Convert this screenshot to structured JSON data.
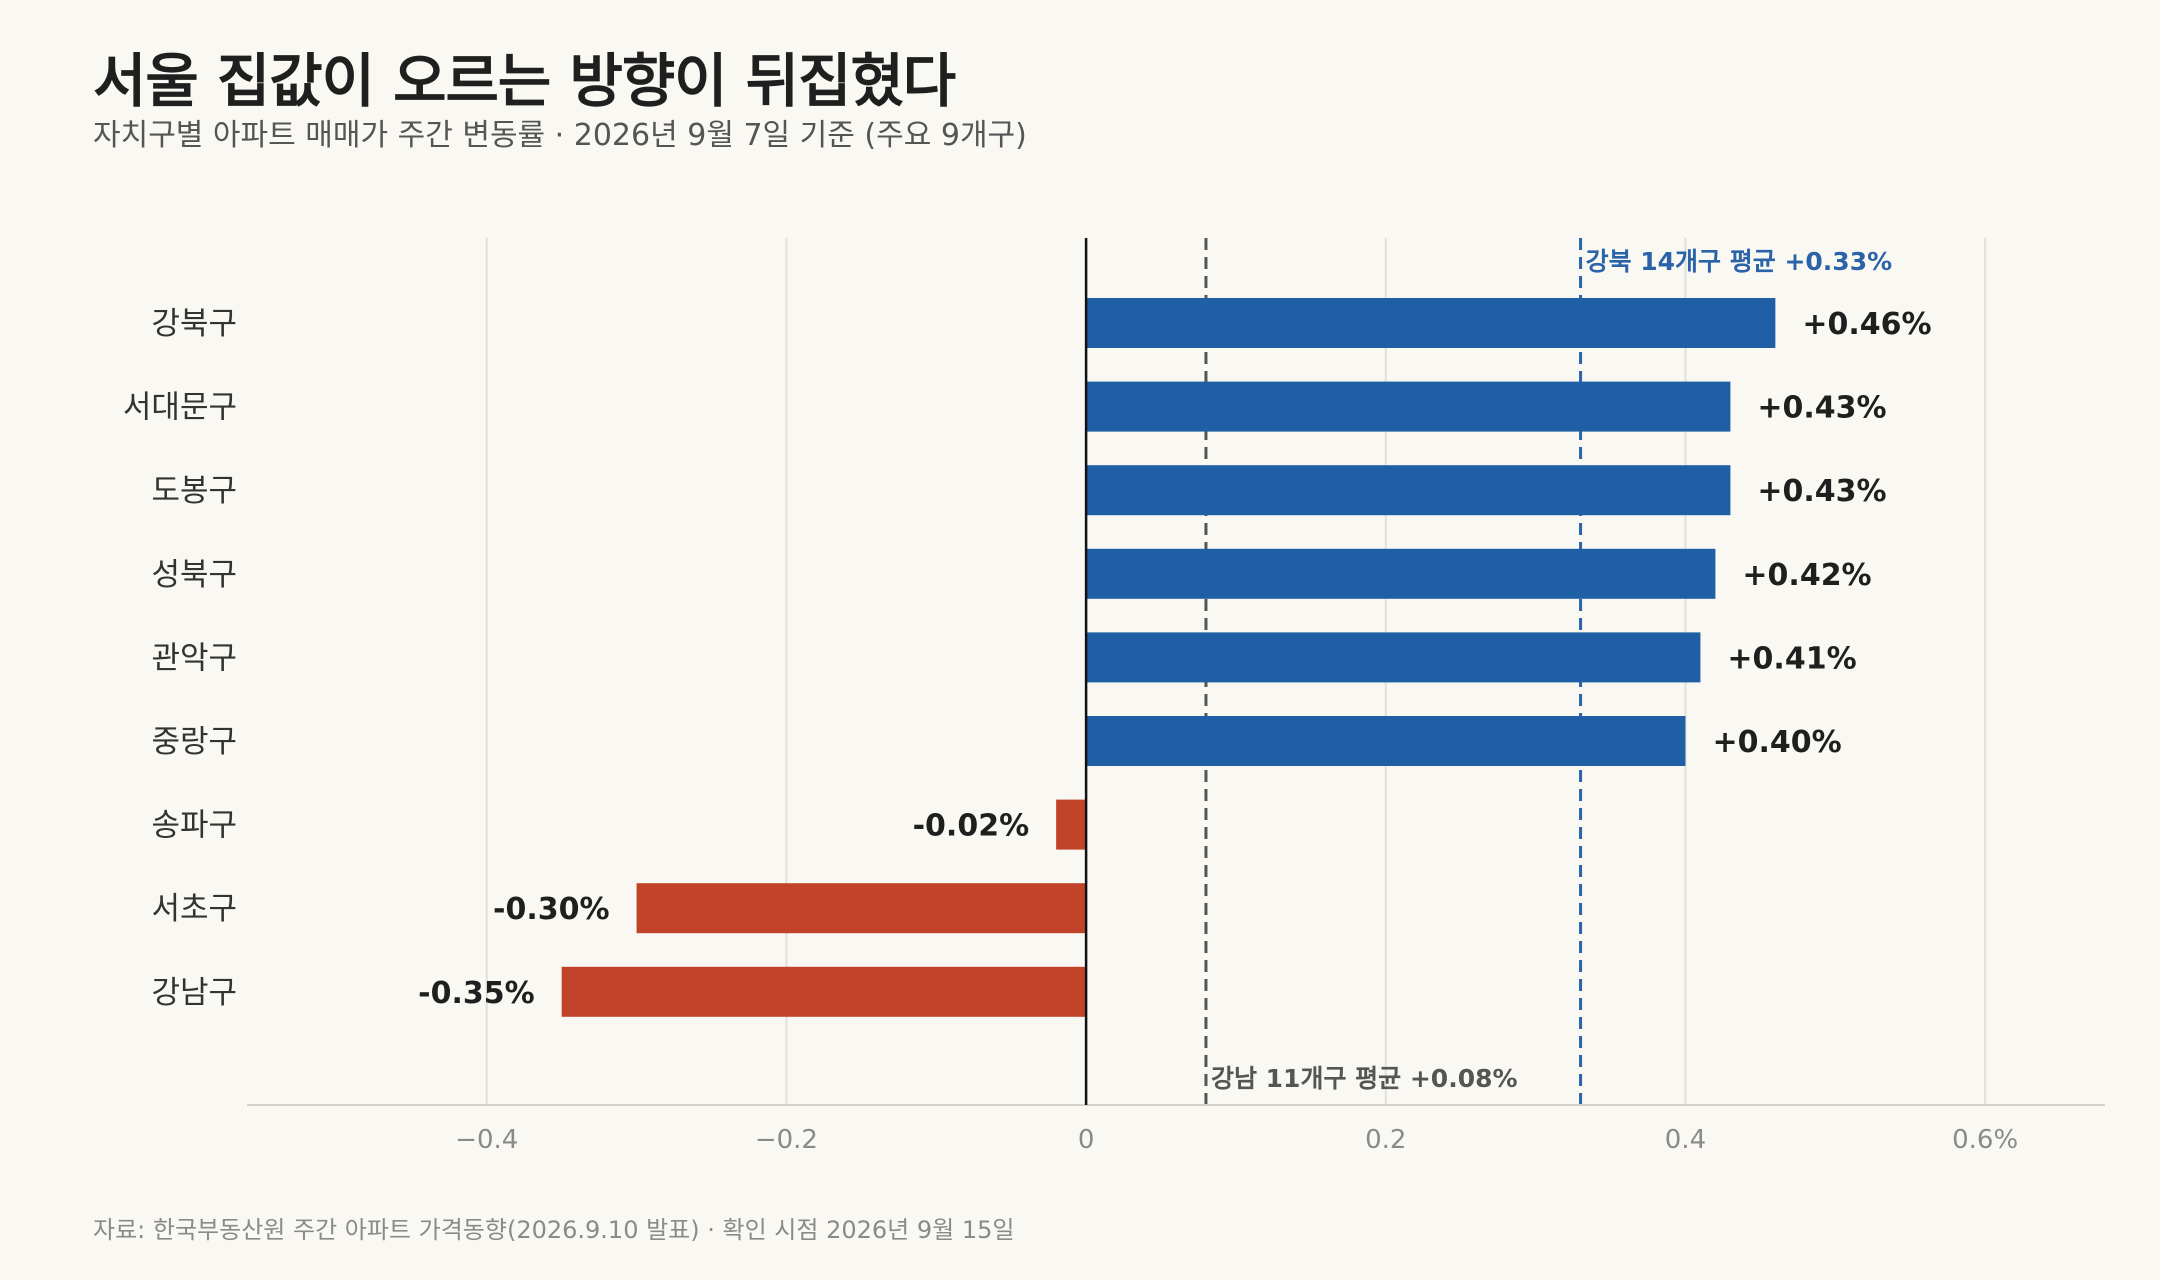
{
  "title": "서울 집값이 오르는 방향이 뒤집혔다",
  "subtitle": "자치구별 아파트 매매가 주간 변동률 · 2026년 9월 7일 기준 (주요 9개구)",
  "source": "자료: 한국부동산원 주간 아파트 가격동향(2026.9.10 발표) · 확인 시점 2026년 9월 15일",
  "chart_data": {
    "type": "bar",
    "orientation": "horizontal",
    "categories": [
      "강북구",
      "서대문구",
      "도봉구",
      "성북구",
      "관악구",
      "중랑구",
      "송파구",
      "서초구",
      "강남구"
    ],
    "values": [
      0.46,
      0.43,
      0.43,
      0.42,
      0.41,
      0.4,
      -0.02,
      -0.3,
      -0.35
    ],
    "value_labels": [
      "+0.46%",
      "+0.43%",
      "+0.43%",
      "+0.42%",
      "+0.41%",
      "+0.40%",
      "-0.02%",
      "-0.30%",
      "-0.35%"
    ],
    "xlim": [
      -0.56,
      0.68
    ],
    "xticks": [
      -0.4,
      -0.2,
      0,
      0.2,
      0.4,
      0.6
    ],
    "xtick_labels": [
      "−0.4",
      "−0.2",
      "0",
      "0.2",
      "0.4",
      "0.6%"
    ],
    "grid": true,
    "colors": {
      "positive": "#1f5fa6",
      "negative": "#c1442a"
    },
    "reference_lines": [
      {
        "value": 0.33,
        "label": "강북 14개구 평균 +0.33%",
        "color": "#2b63a8",
        "label_position": "top"
      },
      {
        "value": 0.08,
        "label": "강남 11개구 평균 +0.08%",
        "color": "#555555",
        "label_position": "bottom"
      }
    ]
  }
}
